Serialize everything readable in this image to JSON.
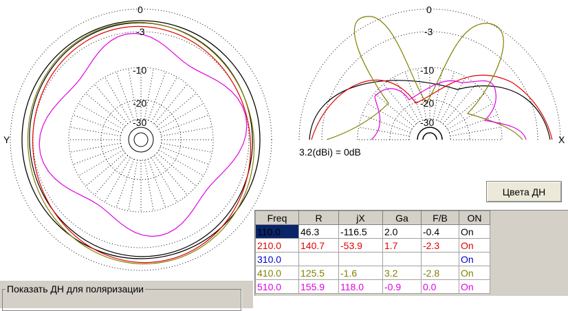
{
  "polar_left": {
    "ring_labels": [
      "0",
      "-3",
      "-10",
      "-20",
      "-30"
    ],
    "axis_left": "Y"
  },
  "polar_right": {
    "ring_labels": [
      "0",
      "-3",
      "-10",
      "-20",
      "-30"
    ],
    "axis_right": "X",
    "gain_note": "3.2(dBi) = 0dB"
  },
  "colors_button": "Цвета ДН",
  "table": {
    "headers": [
      "Freq",
      "R",
      "jX",
      "Ga",
      "F/B",
      "ON"
    ],
    "rows": [
      {
        "cells": [
          "110.0",
          "46.3",
          "-116.5",
          "2.0",
          "-0.4",
          "On"
        ],
        "color": "#000000",
        "selected": true
      },
      {
        "cells": [
          "210.0",
          "140.7",
          "-53.9",
          "1.7",
          "-2.3",
          "On"
        ],
        "color": "#e00000",
        "selected": false
      },
      {
        "cells": [
          "310.0",
          "",
          "",
          "",
          "",
          "On"
        ],
        "color": "#0000d0",
        "selected": false
      },
      {
        "cells": [
          "410.0",
          "125.5",
          "-1.6",
          "3.2",
          "-2.8",
          "On"
        ],
        "color": "#808000",
        "selected": false
      },
      {
        "cells": [
          "510.0",
          "155.9",
          "118.0",
          "-0.9",
          "0.0",
          "On"
        ],
        "color": "#e000e0",
        "selected": false
      }
    ]
  },
  "polarization_group": "Показать ДН для поляризации",
  "series_colors": {
    "black": "#000000",
    "red": "#e00000",
    "olive": "#808000",
    "magenta": "#e000e0"
  }
}
